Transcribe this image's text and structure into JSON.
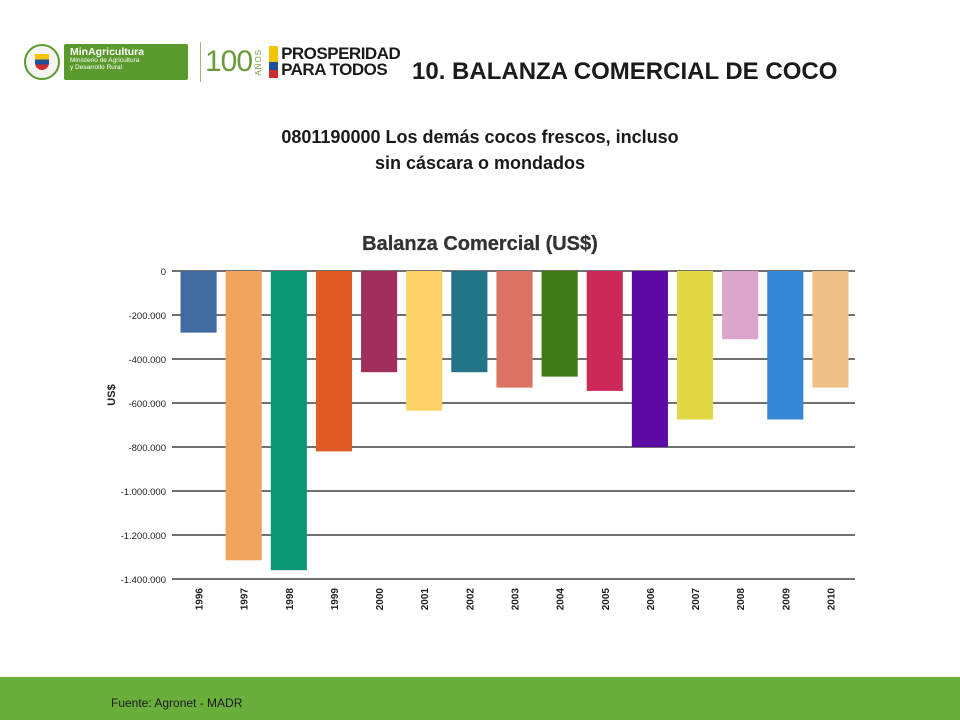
{
  "header": {
    "ministry_name": "MinAgricultura",
    "ministry_sub1": "Ministerio de Agricultura",
    "ministry_sub2": "y Desarrollo Rural",
    "centenary_number": "100",
    "centenary_word": "AÑOS",
    "prosperity_line1": "PROSPERIDAD",
    "prosperity_line2": "PARA TODOS"
  },
  "slide": {
    "title": "10. BALANZA COMERCIAL DE COCO",
    "subtitle_line1": "0801190000 Los demás cocos frescos, incluso",
    "subtitle_line2": "sin cáscara o mondados"
  },
  "footer": {
    "source": "Fuente: Agronet - MADR"
  },
  "colors": {
    "footer_green": "#6aaf3c",
    "brand_green": "#5a9a2c"
  },
  "chart_data": {
    "type": "bar",
    "title": "Balanza Comercial (US$)",
    "xlabel": "",
    "ylabel": "US$",
    "ylim": [
      -1400000,
      0
    ],
    "yticks": [
      0,
      -200000,
      -400000,
      -600000,
      -800000,
      -1000000,
      -1200000,
      -1400000
    ],
    "ytick_labels": [
      "0",
      "-200.000",
      "-400.000",
      "-600.000",
      "-800.000",
      "-1.000.000",
      "-1.200.000",
      "-1.400.000"
    ],
    "grid": true,
    "categories": [
      "1996",
      "1997",
      "1998",
      "1999",
      "2000",
      "2001",
      "2002",
      "2003",
      "2004",
      "2005",
      "2006",
      "2007",
      "2008",
      "2009",
      "2010"
    ],
    "values": [
      -280000,
      -1315000,
      -1360000,
      -820000,
      -460000,
      -635000,
      -460000,
      -530000,
      -480000,
      -545000,
      -800000,
      -675000,
      -310000,
      -675000,
      -530000
    ],
    "bar_colors": [
      "#3f6aa2",
      "#f0a35c",
      "#0b9774",
      "#e05a24",
      "#a02f5e",
      "#ffd066",
      "#247489",
      "#db7264",
      "#3f7a16",
      "#cc2959",
      "#5e0aa4",
      "#e2d744",
      "#dca6ca",
      "#3686d6",
      "#f0c089"
    ]
  }
}
